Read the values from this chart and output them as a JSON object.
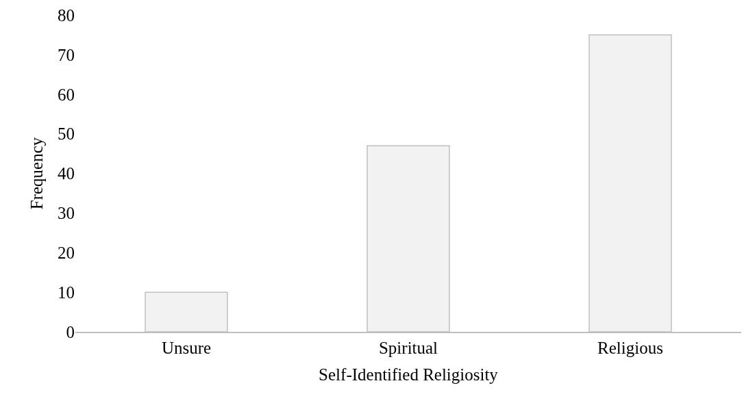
{
  "chart_data": {
    "type": "bar",
    "xlabel": "Self-Identified Religiosity",
    "ylabel": "Frequency",
    "categories": [
      "Unsure",
      "Spiritual",
      "Religious"
    ],
    "values": [
      10,
      47,
      75
    ],
    "color": "#f2f2f2",
    "ylim": [
      0,
      80
    ],
    "yticks": [
      0,
      10,
      20,
      30,
      40,
      50,
      60,
      70,
      80
    ],
    "grid": false
  }
}
